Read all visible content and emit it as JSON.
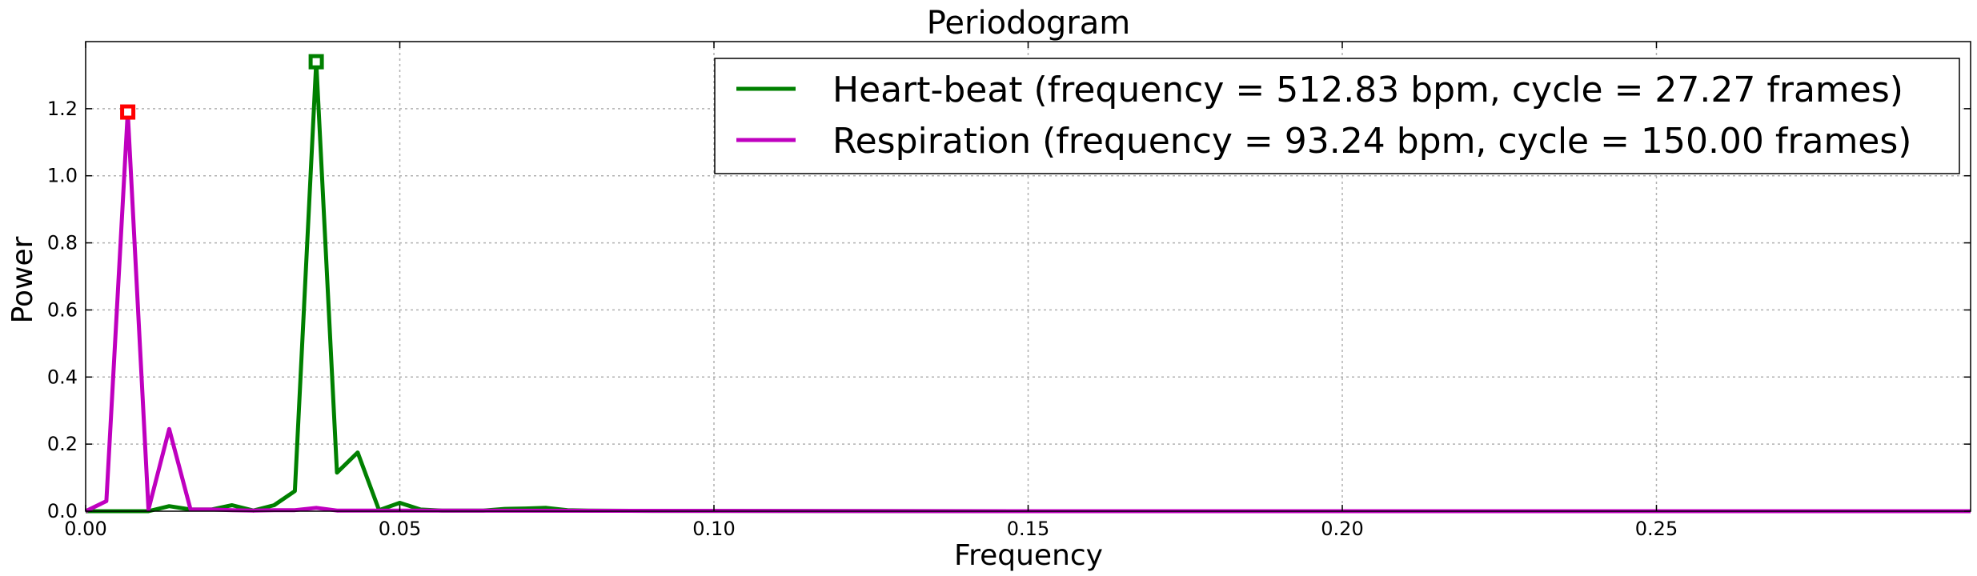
{
  "chart_data": {
    "type": "line",
    "title": "Periodogram",
    "xlabel": "Frequency",
    "ylabel": "Power",
    "xlim": [
      0,
      0.3
    ],
    "ylim": [
      0,
      1.4
    ],
    "grid": true,
    "legend_position": "top-right",
    "x_ticks": [
      0.0,
      0.05,
      0.1,
      0.15,
      0.2,
      0.25
    ],
    "x_tick_labels": [
      "0.00",
      "0.05",
      "0.10",
      "0.15",
      "0.20",
      "0.25"
    ],
    "y_ticks": [
      0.0,
      0.2,
      0.4,
      0.6,
      0.8,
      1.0,
      1.2
    ],
    "y_tick_labels": [
      "0.0",
      "0.2",
      "0.4",
      "0.6",
      "0.8",
      "1.0",
      "1.2"
    ],
    "series": [
      {
        "name": "Heart-beat (frequency = 512.83 bpm, cycle = 27.27 frames)",
        "color": "#008000",
        "marker_color": "#008000",
        "peak": {
          "x": 0.0367,
          "y": 1.34
        },
        "x": [
          0.0,
          0.0033,
          0.0067,
          0.01,
          0.0133,
          0.0167,
          0.02,
          0.0233,
          0.0267,
          0.03,
          0.0333,
          0.0367,
          0.04,
          0.0433,
          0.0467,
          0.05,
          0.0533,
          0.0567,
          0.06,
          0.0633,
          0.0667,
          0.07,
          0.0733,
          0.0767,
          0.08,
          0.09,
          0.1,
          0.15,
          0.2,
          0.25,
          0.3
        ],
        "y": [
          0.0,
          0.0,
          0.0,
          0.0,
          0.015,
          0.005,
          0.005,
          0.018,
          0.002,
          0.018,
          0.06,
          1.34,
          0.115,
          0.175,
          0.003,
          0.025,
          0.005,
          0.002,
          0.002,
          0.002,
          0.007,
          0.008,
          0.01,
          0.003,
          0.002,
          0.001,
          0.001,
          0.0,
          0.0,
          0.0,
          0.0
        ]
      },
      {
        "name": "Respiration (frequency = 93.24 bpm, cycle = 150.00 frames)",
        "color": "#bf00bf",
        "marker_color": "#ff0000",
        "peak": {
          "x": 0.0067,
          "y": 1.19
        },
        "x": [
          0.0,
          0.0033,
          0.0067,
          0.01,
          0.0133,
          0.0167,
          0.02,
          0.0233,
          0.0267,
          0.03,
          0.0333,
          0.0367,
          0.04,
          0.0433,
          0.05,
          0.1,
          0.15,
          0.2,
          0.25,
          0.3
        ],
        "y": [
          0.0,
          0.03,
          1.19,
          0.005,
          0.245,
          0.005,
          0.005,
          0.003,
          0.002,
          0.003,
          0.003,
          0.01,
          0.002,
          0.002,
          0.002,
          0.001,
          0.0,
          0.0,
          0.0,
          0.0
        ]
      }
    ]
  }
}
